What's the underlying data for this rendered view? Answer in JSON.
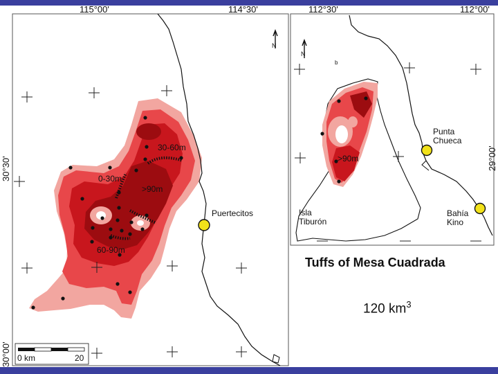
{
  "colors": {
    "band": "#3a3f9e",
    "zone_low": "#f2a6a0",
    "zone_mid": "#e8474a",
    "zone_high": "#c8161d",
    "zone_max": "#9c0c10",
    "town_marker": "#f2e21a"
  },
  "left_map": {
    "top_coords": [
      "115°00'",
      "114°30'"
    ],
    "side_coords": [
      "30°30'",
      "30°00'"
    ],
    "zone_labels": [
      "30-60m",
      "0-30m",
      ">90m",
      "60-90m"
    ],
    "town": "Puertecitos",
    "scale_bar": {
      "start_label": "0 km",
      "end_label": "20"
    }
  },
  "right_map": {
    "top_coords": [
      "112°30'",
      "112°00'"
    ],
    "side_coord": "29°00'",
    "zone_label": ">90m",
    "places": [
      {
        "line1": "Punta",
        "line2": "Chueca"
      },
      {
        "line1": "Isla",
        "line2": "Tiburón"
      },
      {
        "line1": "Bahía",
        "line2": "Kino"
      }
    ],
    "north_label": "N",
    "island_tag": "b"
  },
  "left_north_label": "N",
  "caption": {
    "title": "Tuffs of Mesa Cuadrada",
    "volume_value": "120 km",
    "volume_unit_power": "3"
  }
}
